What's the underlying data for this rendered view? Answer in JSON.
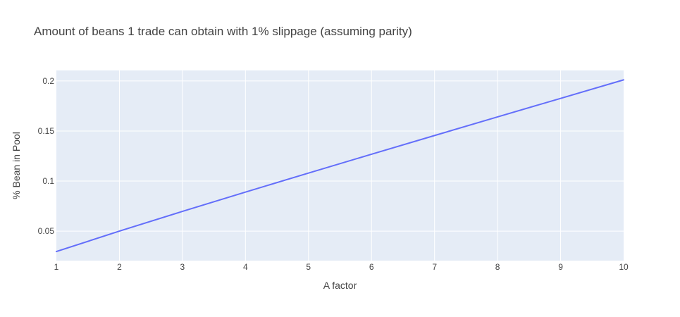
{
  "chart_data": {
    "type": "line",
    "title": "Amount of beans 1 trade can obtain with 1% slippage (assuming parity)",
    "xlabel": "A factor",
    "ylabel": "% Bean in Pool",
    "x": [
      1,
      2,
      3,
      4,
      5,
      6,
      7,
      8,
      9,
      10
    ],
    "series": [
      {
        "values": [
          0.0296,
          0.05,
          0.0697,
          0.089,
          0.108,
          0.1268,
          0.1455,
          0.1641,
          0.1826,
          0.2011
        ]
      }
    ],
    "xlim": [
      1,
      10
    ],
    "ylim": [
      0.0205,
      0.2105
    ],
    "xticks": [
      1,
      2,
      3,
      4,
      5,
      6,
      7,
      8,
      9,
      10
    ],
    "yticks": [
      0.05,
      0.1,
      0.15,
      0.2
    ],
    "xtick_labels": [
      "1",
      "2",
      "3",
      "4",
      "5",
      "6",
      "7",
      "8",
      "9",
      "10"
    ],
    "ytick_labels": [
      "0.05",
      "0.1",
      "0.15",
      "0.2"
    ],
    "grid": true,
    "legend": "none",
    "colors": {
      "plot_bg": "#e5ecf6",
      "grid": "#ffffff",
      "line": "#636efa",
      "text": "#444444"
    }
  }
}
